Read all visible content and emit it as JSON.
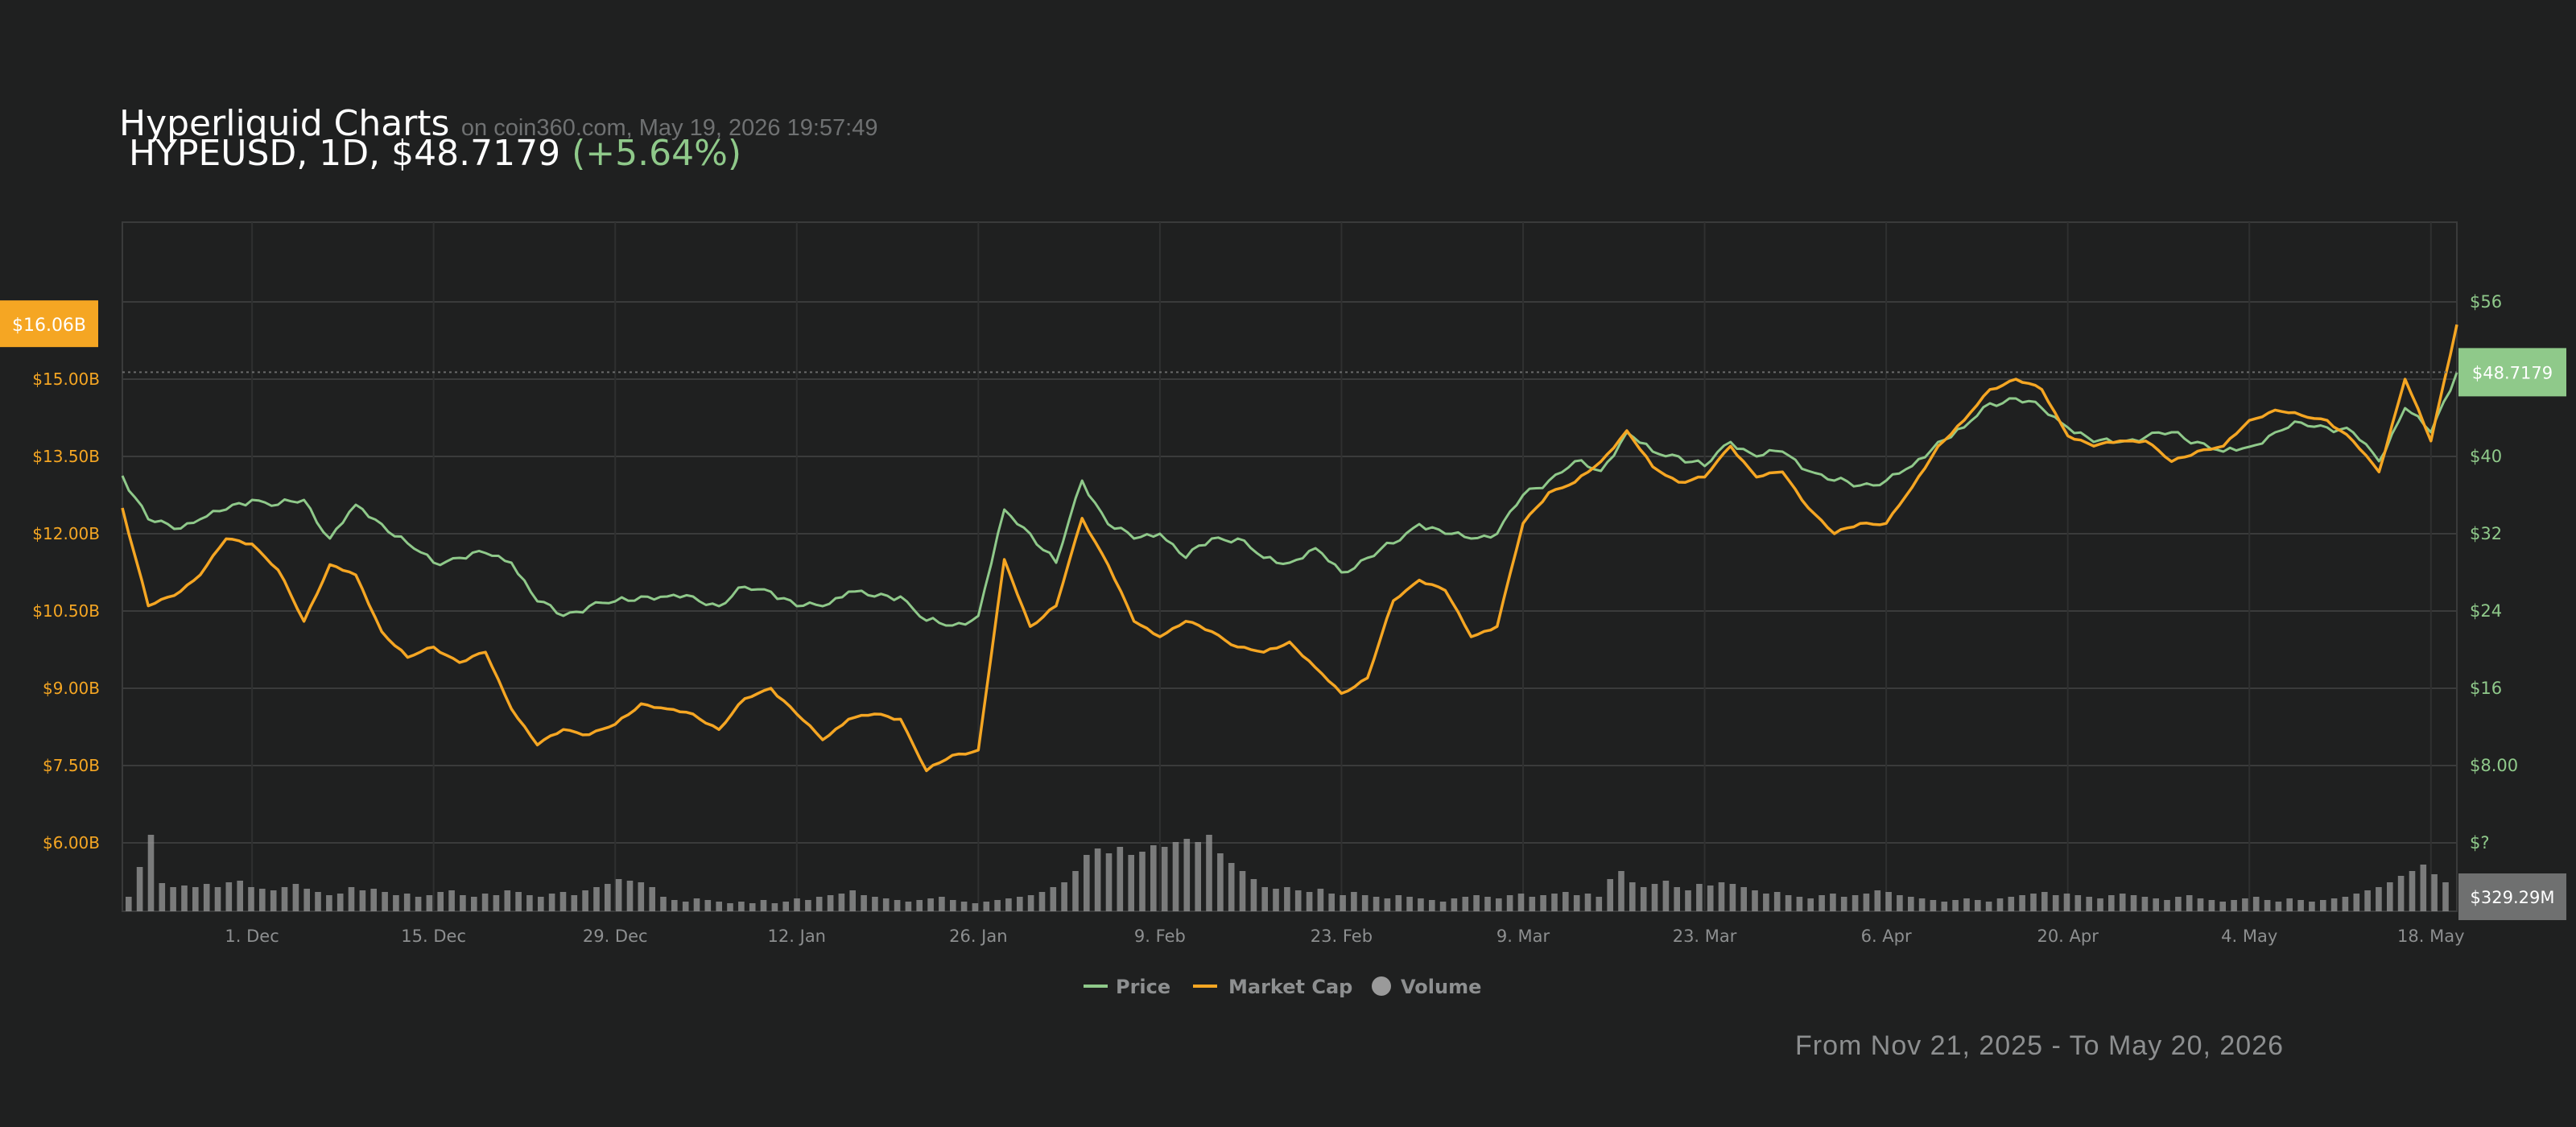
{
  "header": {
    "title": "Hyperliquid Charts",
    "subtitle": "on coin360.com, May 19, 2026 19:57:49",
    "ticker": "HYPEUSD, 1D, $48.7179",
    "change": "(+5.64%)"
  },
  "footer": {
    "date_range": "From Nov 21, 2025 - To May 20, 2026"
  },
  "colors": {
    "price": "#8fc98a",
    "market_cap": "#f5a623",
    "volume": "#9a9a9a",
    "background": "#1f2020",
    "grid": "#3a3b3b"
  },
  "chart_data": {
    "type": "line",
    "x_start": "2025-11-21",
    "x_end": "2026-05-20",
    "x_ticks": [
      "1. Dec",
      "15. Dec",
      "29. Dec",
      "12. Jan",
      "26. Jan",
      "9. Feb",
      "23. Feb",
      "9. Mar",
      "23. Mar",
      "6. Apr",
      "20. Apr",
      "4. May",
      "18. May"
    ],
    "x_tick_dates": [
      "2025-12-01",
      "2025-12-15",
      "2025-12-29",
      "2026-01-12",
      "2026-01-26",
      "2026-02-09",
      "2026-02-23",
      "2026-03-09",
      "2026-03-23",
      "2026-04-06",
      "2026-04-20",
      "2026-05-04",
      "2026-05-18"
    ],
    "y_left": {
      "label": "Market Cap",
      "ticks": [
        "$6.00B",
        "$7.50B",
        "$9.00B",
        "$10.50B",
        "$12.00B",
        "$13.50B",
        "$15.00B"
      ],
      "tick_values": [
        6.0,
        7.5,
        9.0,
        10.5,
        12.0,
        13.5,
        15.0
      ],
      "range": [
        6.0,
        16.5
      ],
      "current_label": "$16.06B",
      "current_value": 16.06
    },
    "y_right": {
      "label": "Price",
      "ticks": [
        "$?",
        "$8.00",
        "$16",
        "$24",
        "$32",
        "$40",
        "$56"
      ],
      "tick_values": [
        0,
        8,
        16,
        24,
        32,
        40,
        56
      ],
      "range": [
        0,
        56
      ],
      "current_label": "$48.7179",
      "current_value": 48.7179
    },
    "volume_label": "$329.29M",
    "legend": [
      "Price",
      "Market Cap",
      "Volume"
    ],
    "legend_placement": "bottom-center",
    "grid": true,
    "series": [
      {
        "name": "Price",
        "axis": "right",
        "points": [
          [
            "2025-11-21",
            38
          ],
          [
            "2025-11-23",
            33.5
          ],
          [
            "2025-11-25",
            32.5
          ],
          [
            "2025-11-27",
            33.5
          ],
          [
            "2025-11-29",
            34.5
          ],
          [
            "2025-12-01",
            35.5
          ],
          [
            "2025-12-03",
            35
          ],
          [
            "2025-12-05",
            35.5
          ],
          [
            "2025-12-07",
            31.5
          ],
          [
            "2025-12-09",
            35
          ],
          [
            "2025-12-11",
            33
          ],
          [
            "2025-12-13",
            31
          ],
          [
            "2025-12-15",
            29
          ],
          [
            "2025-12-17",
            29.5
          ],
          [
            "2025-12-19",
            30
          ],
          [
            "2025-12-21",
            29
          ],
          [
            "2025-12-23",
            25
          ],
          [
            "2025-12-25",
            23.5
          ],
          [
            "2025-12-27",
            24.5
          ],
          [
            "2025-12-29",
            25
          ],
          [
            "2025-12-31",
            25.5
          ],
          [
            "2026-01-02",
            25.5
          ],
          [
            "2026-01-04",
            25.5
          ],
          [
            "2026-01-06",
            24.5
          ],
          [
            "2026-01-08",
            26.5
          ],
          [
            "2026-01-10",
            26
          ],
          [
            "2026-01-12",
            24.5
          ],
          [
            "2026-01-14",
            24.5
          ],
          [
            "2026-01-16",
            26
          ],
          [
            "2026-01-18",
            25.5
          ],
          [
            "2026-01-20",
            25.5
          ],
          [
            "2026-01-22",
            23
          ],
          [
            "2026-01-24",
            22.5
          ],
          [
            "2026-01-26",
            23.5
          ],
          [
            "2026-01-28",
            34.5
          ],
          [
            "2026-01-30",
            32
          ],
          [
            "2026-02-01",
            29
          ],
          [
            "2026-02-03",
            37.5
          ],
          [
            "2026-02-05",
            33
          ],
          [
            "2026-02-07",
            31.5
          ],
          [
            "2026-02-09",
            32
          ],
          [
            "2026-02-11",
            29.5
          ],
          [
            "2026-02-13",
            31.5
          ],
          [
            "2026-02-15",
            31.5
          ],
          [
            "2026-02-17",
            29.5
          ],
          [
            "2026-02-19",
            29
          ],
          [
            "2026-02-21",
            30.5
          ],
          [
            "2026-02-23",
            28
          ],
          [
            "2026-02-25",
            29.5
          ],
          [
            "2026-02-27",
            31
          ],
          [
            "2026-03-01",
            33
          ],
          [
            "2026-03-03",
            32
          ],
          [
            "2026-03-05",
            31.5
          ],
          [
            "2026-03-07",
            32
          ],
          [
            "2026-03-09",
            36
          ],
          [
            "2026-03-11",
            37.5
          ],
          [
            "2026-03-13",
            39.5
          ],
          [
            "2026-03-15",
            38.5
          ],
          [
            "2026-03-17",
            42.5
          ],
          [
            "2026-03-19",
            40.5
          ],
          [
            "2026-03-21",
            40
          ],
          [
            "2026-03-23",
            39
          ],
          [
            "2026-03-25",
            41.5
          ],
          [
            "2026-03-27",
            40
          ],
          [
            "2026-03-29",
            40.5
          ],
          [
            "2026-03-31",
            38.5
          ],
          [
            "2026-04-02",
            37.5
          ],
          [
            "2026-04-04",
            37
          ],
          [
            "2026-04-06",
            37.5
          ],
          [
            "2026-04-08",
            39
          ],
          [
            "2026-04-10",
            41.5
          ],
          [
            "2026-04-12",
            43
          ],
          [
            "2026-04-14",
            45.5
          ],
          [
            "2026-04-16",
            46
          ],
          [
            "2026-04-18",
            45
          ],
          [
            "2026-04-20",
            43
          ],
          [
            "2026-04-22",
            41.5
          ],
          [
            "2026-04-24",
            41.5
          ],
          [
            "2026-04-26",
            42
          ],
          [
            "2026-04-28",
            42.5
          ],
          [
            "2026-04-30",
            41.5
          ],
          [
            "2026-05-02",
            40.5
          ],
          [
            "2026-05-04",
            41
          ],
          [
            "2026-05-06",
            42.5
          ],
          [
            "2026-05-08",
            43.5
          ],
          [
            "2026-05-10",
            43
          ],
          [
            "2026-05-12",
            42.5
          ],
          [
            "2026-05-14",
            39.5
          ],
          [
            "2026-05-16",
            45
          ],
          [
            "2026-05-18",
            42.5
          ],
          [
            "2026-05-20",
            48.7
          ]
        ]
      },
      {
        "name": "Market Cap",
        "axis": "left",
        "points": [
          [
            "2025-11-21",
            12.5
          ],
          [
            "2025-11-23",
            10.6
          ],
          [
            "2025-11-25",
            10.8
          ],
          [
            "2025-11-27",
            11.2
          ],
          [
            "2025-11-29",
            11.9
          ],
          [
            "2025-12-01",
            11.8
          ],
          [
            "2025-12-03",
            11.3
          ],
          [
            "2025-12-05",
            10.3
          ],
          [
            "2025-12-07",
            11.4
          ],
          [
            "2025-12-09",
            11.2
          ],
          [
            "2025-12-11",
            10.1
          ],
          [
            "2025-12-13",
            9.6
          ],
          [
            "2025-12-15",
            9.8
          ],
          [
            "2025-12-17",
            9.5
          ],
          [
            "2025-12-19",
            9.7
          ],
          [
            "2025-12-21",
            8.6
          ],
          [
            "2025-12-23",
            7.9
          ],
          [
            "2025-12-25",
            8.2
          ],
          [
            "2025-12-27",
            8.1
          ],
          [
            "2025-12-29",
            8.3
          ],
          [
            "2025-12-31",
            8.7
          ],
          [
            "2026-01-02",
            8.6
          ],
          [
            "2026-01-04",
            8.5
          ],
          [
            "2026-01-06",
            8.2
          ],
          [
            "2026-01-08",
            8.8
          ],
          [
            "2026-01-10",
            9.0
          ],
          [
            "2026-01-12",
            8.5
          ],
          [
            "2026-01-14",
            8.0
          ],
          [
            "2026-01-16",
            8.4
          ],
          [
            "2026-01-18",
            8.5
          ],
          [
            "2026-01-20",
            8.4
          ],
          [
            "2026-01-22",
            7.4
          ],
          [
            "2026-01-24",
            7.7
          ],
          [
            "2026-01-26",
            7.8
          ],
          [
            "2026-01-28",
            11.5
          ],
          [
            "2026-01-30",
            10.2
          ],
          [
            "2026-02-01",
            10.6
          ],
          [
            "2026-02-03",
            12.3
          ],
          [
            "2026-02-05",
            11.4
          ],
          [
            "2026-02-07",
            10.3
          ],
          [
            "2026-02-09",
            10.0
          ],
          [
            "2026-02-11",
            10.3
          ],
          [
            "2026-02-13",
            10.1
          ],
          [
            "2026-02-15",
            9.8
          ],
          [
            "2026-02-17",
            9.7
          ],
          [
            "2026-02-19",
            9.9
          ],
          [
            "2026-02-21",
            9.4
          ],
          [
            "2026-02-23",
            8.9
          ],
          [
            "2026-02-25",
            9.2
          ],
          [
            "2026-02-27",
            10.7
          ],
          [
            "2026-03-01",
            11.1
          ],
          [
            "2026-03-03",
            10.9
          ],
          [
            "2026-03-05",
            10.0
          ],
          [
            "2026-03-07",
            10.2
          ],
          [
            "2026-03-09",
            12.2
          ],
          [
            "2026-03-11",
            12.8
          ],
          [
            "2026-03-13",
            13.0
          ],
          [
            "2026-03-15",
            13.4
          ],
          [
            "2026-03-17",
            14.0
          ],
          [
            "2026-03-19",
            13.3
          ],
          [
            "2026-03-21",
            13.0
          ],
          [
            "2026-03-23",
            13.1
          ],
          [
            "2026-03-25",
            13.7
          ],
          [
            "2026-03-27",
            13.1
          ],
          [
            "2026-03-29",
            13.2
          ],
          [
            "2026-03-31",
            12.5
          ],
          [
            "2026-04-02",
            12.0
          ],
          [
            "2026-04-04",
            12.2
          ],
          [
            "2026-04-06",
            12.2
          ],
          [
            "2026-04-08",
            12.9
          ],
          [
            "2026-04-10",
            13.7
          ],
          [
            "2026-04-12",
            14.2
          ],
          [
            "2026-04-14",
            14.8
          ],
          [
            "2026-04-16",
            15.0
          ],
          [
            "2026-04-18",
            14.8
          ],
          [
            "2026-04-20",
            13.9
          ],
          [
            "2026-04-22",
            13.7
          ],
          [
            "2026-04-24",
            13.8
          ],
          [
            "2026-04-26",
            13.8
          ],
          [
            "2026-04-28",
            13.4
          ],
          [
            "2026-04-30",
            13.6
          ],
          [
            "2026-05-02",
            13.7
          ],
          [
            "2026-05-04",
            14.2
          ],
          [
            "2026-05-06",
            14.4
          ],
          [
            "2026-05-08",
            14.3
          ],
          [
            "2026-05-10",
            14.2
          ],
          [
            "2026-05-12",
            13.8
          ],
          [
            "2026-05-14",
            13.2
          ],
          [
            "2026-05-16",
            15.0
          ],
          [
            "2026-05-18",
            13.8
          ],
          [
            "2026-05-20",
            16.06
          ]
        ]
      }
    ],
    "volume": {
      "name": "Volume",
      "unit": "relative",
      "values": [
        0.18,
        0.55,
        0.95,
        0.35,
        0.3,
        0.32,
        0.3,
        0.34,
        0.3,
        0.36,
        0.38,
        0.3,
        0.28,
        0.26,
        0.3,
        0.34,
        0.28,
        0.24,
        0.2,
        0.22,
        0.3,
        0.26,
        0.28,
        0.24,
        0.2,
        0.22,
        0.18,
        0.2,
        0.24,
        0.26,
        0.2,
        0.18,
        0.22,
        0.2,
        0.26,
        0.24,
        0.2,
        0.18,
        0.22,
        0.24,
        0.2,
        0.26,
        0.3,
        0.34,
        0.4,
        0.38,
        0.36,
        0.3,
        0.18,
        0.14,
        0.12,
        0.16,
        0.14,
        0.12,
        0.1,
        0.12,
        0.1,
        0.14,
        0.1,
        0.12,
        0.16,
        0.14,
        0.18,
        0.2,
        0.22,
        0.26,
        0.2,
        0.18,
        0.16,
        0.14,
        0.12,
        0.14,
        0.16,
        0.18,
        0.14,
        0.12,
        0.1,
        0.12,
        0.14,
        0.16,
        0.18,
        0.2,
        0.24,
        0.3,
        0.36,
        0.5,
        0.7,
        0.78,
        0.72,
        0.8,
        0.7,
        0.74,
        0.82,
        0.8,
        0.86,
        0.9,
        0.86,
        0.95,
        0.72,
        0.6,
        0.5,
        0.4,
        0.3,
        0.28,
        0.3,
        0.26,
        0.24,
        0.28,
        0.22,
        0.2,
        0.24,
        0.2,
        0.18,
        0.16,
        0.2,
        0.18,
        0.16,
        0.14,
        0.12,
        0.16,
        0.18,
        0.2,
        0.18,
        0.16,
        0.2,
        0.22,
        0.18,
        0.2,
        0.22,
        0.24,
        0.2,
        0.22,
        0.18,
        0.4,
        0.5,
        0.36,
        0.3,
        0.34,
        0.38,
        0.3,
        0.26,
        0.34,
        0.32,
        0.36,
        0.34,
        0.3,
        0.26,
        0.22,
        0.24,
        0.2,
        0.18,
        0.16,
        0.2,
        0.22,
        0.18,
        0.2,
        0.22,
        0.26,
        0.24,
        0.2,
        0.18,
        0.16,
        0.14,
        0.12,
        0.14,
        0.16,
        0.14,
        0.12,
        0.16,
        0.18,
        0.2,
        0.22,
        0.24,
        0.2,
        0.22,
        0.2,
        0.18,
        0.16,
        0.2,
        0.22,
        0.2,
        0.18,
        0.16,
        0.14,
        0.18,
        0.2,
        0.16,
        0.14,
        0.12,
        0.14,
        0.16,
        0.18,
        0.14,
        0.12,
        0.16,
        0.14,
        0.12,
        0.14,
        0.16,
        0.18,
        0.22,
        0.26,
        0.3,
        0.36,
        0.44,
        0.5,
        0.58,
        0.46,
        0.36
      ]
    }
  }
}
